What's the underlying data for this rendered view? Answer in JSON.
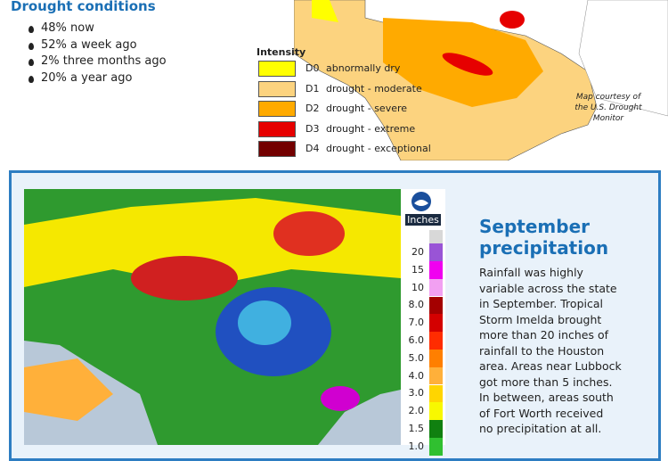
{
  "drought": {
    "title": "Drought conditions",
    "items": [
      "48% now",
      "52% a week ago",
      "2% three months ago",
      "20% a year ago"
    ]
  },
  "intensity": {
    "title": "Intensity",
    "levels": [
      {
        "code": "D0",
        "label": "abnormally dry",
        "color": "#ffff00"
      },
      {
        "code": "D1",
        "label": "drought - moderate",
        "color": "#fcd37f"
      },
      {
        "code": "D2",
        "label": "drought - severe",
        "color": "#ffaa00"
      },
      {
        "code": "D3",
        "label": "drought - extreme",
        "color": "#e60000"
      },
      {
        "code": "D4",
        "label": "drought - exceptional",
        "color": "#730000"
      }
    ]
  },
  "map_credit": [
    "Map courtesy of",
    "the U.S. Drought",
    "Monitor"
  ],
  "precip_scale": {
    "unit": "Inches",
    "levels": [
      {
        "label": "20",
        "color": "#9954d6"
      },
      {
        "label": "15",
        "color": "#f000f0"
      },
      {
        "label": "10",
        "color": "#f2a0f2"
      },
      {
        "label": "8.0",
        "color": "#a40000"
      },
      {
        "label": "7.0",
        "color": "#d40000"
      },
      {
        "label": "6.0",
        "color": "#ff2c00"
      },
      {
        "label": "5.0",
        "color": "#ff7f00"
      },
      {
        "label": "4.0",
        "color": "#ffb03a"
      },
      {
        "label": "3.0",
        "color": "#ffd500"
      },
      {
        "label": "2.0",
        "color": "#f8f800"
      },
      {
        "label": "1.5",
        "color": "#108010"
      },
      {
        "label": "1.0",
        "color": "#30c030"
      }
    ]
  },
  "september": {
    "title": [
      "September",
      "precipitation"
    ],
    "body": [
      "Rainfall was highly",
      "variable across the state",
      "in September. Tropical",
      "Storm Imelda brought",
      "more than 20 inches of",
      "rainfall to the Houston",
      "area. Areas near Lubbock",
      "got more than 5 inches.",
      "In between, areas south",
      "of Fort Worth received",
      "no precipitation at all."
    ]
  }
}
